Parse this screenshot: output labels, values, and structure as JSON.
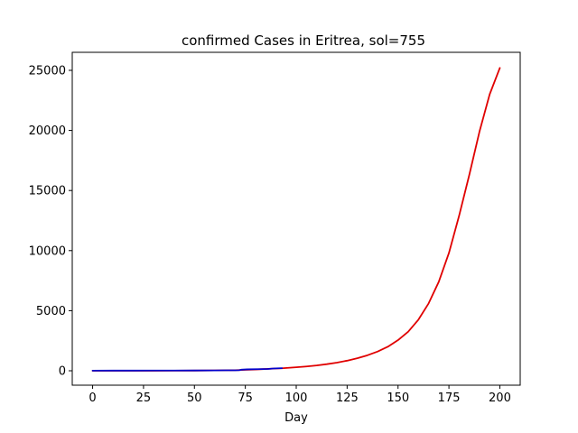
{
  "chart_data": {
    "type": "line",
    "title": "confirmed Cases in Eritrea, sol=755",
    "xlabel": "Day",
    "ylabel": "",
    "xlim": [
      -10,
      210
    ],
    "ylim": [
      -1200,
      26500
    ],
    "x_ticks": [
      0,
      25,
      50,
      75,
      100,
      125,
      150,
      175,
      200
    ],
    "y_ticks": [
      0,
      5000,
      10000,
      15000,
      20000,
      25000
    ],
    "grid": false,
    "legend": "none",
    "series": [
      {
        "color": "#e00000",
        "x": [
          0,
          10,
          20,
          30,
          40,
          50,
          60,
          70,
          80,
          90,
          93,
          100,
          105,
          110,
          115,
          120,
          125,
          130,
          135,
          140,
          145,
          150,
          155,
          160,
          165,
          170,
          175,
          180,
          185,
          190,
          195,
          200
        ],
        "y": [
          0,
          1,
          3,
          6,
          10,
          17,
          30,
          50,
          110,
          190,
          210,
          290,
          360,
          445,
          550,
          680,
          840,
          1040,
          1290,
          1600,
          2000,
          2550,
          3250,
          4250,
          5600,
          7400,
          9800,
          12900,
          16300,
          19900,
          23000,
          25200
        ]
      },
      {
        "color": "#0000cc",
        "x": [
          0,
          10,
          20,
          30,
          40,
          50,
          60,
          65,
          70,
          72,
          73,
          76,
          80,
          84,
          86,
          88,
          90,
          93
        ],
        "y": [
          12,
          15,
          16,
          18,
          20,
          25,
          32,
          36,
          40,
          45,
          90,
          120,
          135,
          140,
          150,
          180,
          200,
          215
        ]
      }
    ]
  }
}
